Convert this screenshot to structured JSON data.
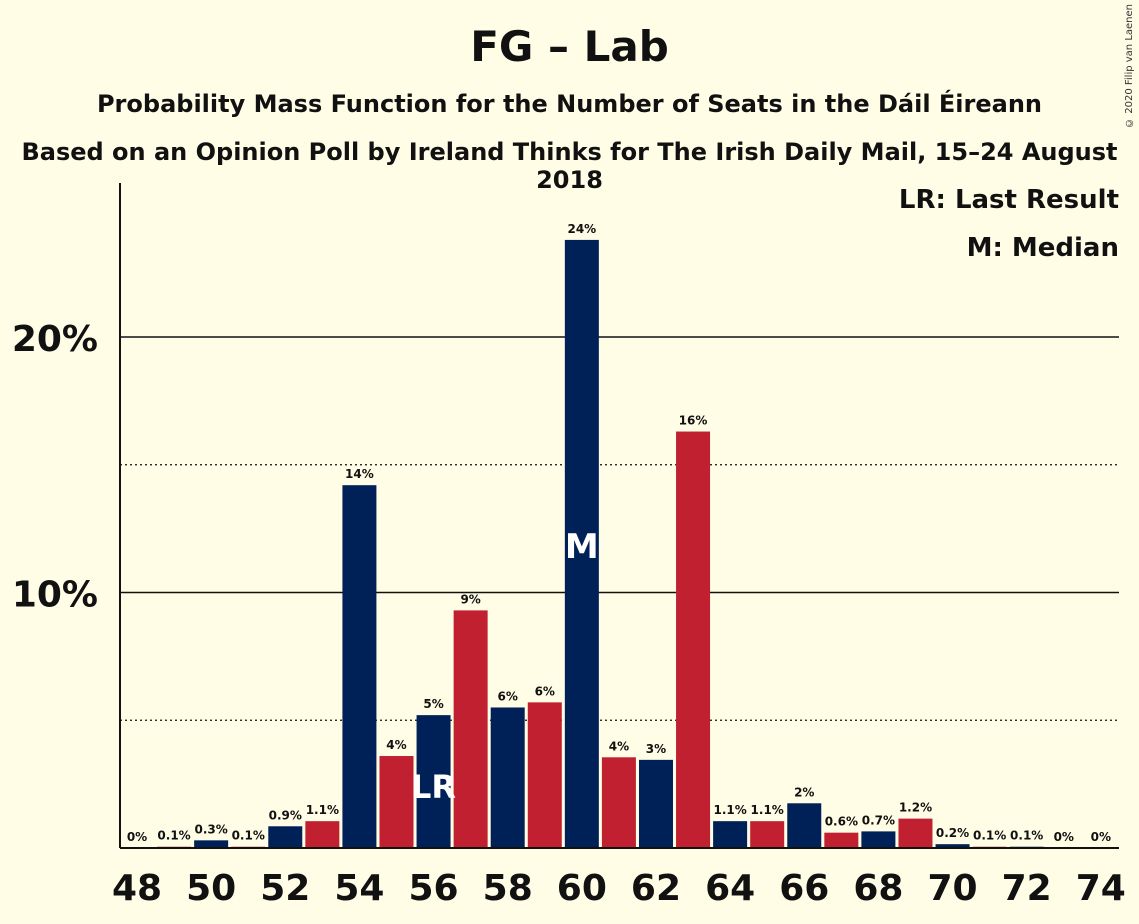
{
  "title": "FG – Lab",
  "subtitle1": "Probability Mass Function for the Number of Seats in the Dáil Éireann",
  "subtitle2": "Based on an Opinion Poll by Ireland Thinks for The Irish Daily Mail, 15–24 August 2018",
  "copyright": "© 2020 Filip van Laenen",
  "legend": {
    "last_result": "LR: Last Result",
    "median": "M: Median"
  },
  "colors": {
    "navy": "#002157",
    "red": "#c0202f",
    "background": "#fffde6"
  },
  "chart_data": {
    "type": "bar",
    "x": [
      48,
      49,
      50,
      51,
      52,
      53,
      54,
      55,
      56,
      57,
      58,
      59,
      60,
      61,
      62,
      63,
      64,
      65,
      66,
      67,
      68,
      69,
      70,
      71,
      72,
      73,
      74
    ],
    "values": [
      0,
      0.05,
      0.3,
      0.05,
      0.85,
      1.05,
      14.2,
      3.6,
      5.2,
      9.3,
      5.5,
      5.7,
      23.8,
      3.55,
      3.45,
      16.3,
      1.05,
      1.05,
      1.75,
      0.6,
      0.65,
      1.15,
      0.15,
      0.05,
      0.05,
      0,
      0
    ],
    "data_labels": [
      "0%",
      "0.1%",
      "0.3%",
      "0.1%",
      "0.9%",
      "1.1%",
      "14%",
      "4%",
      "5%",
      "9%",
      "6%",
      "6%",
      "24%",
      "4%",
      "3%",
      "16%",
      "1.1%",
      "1.1%",
      "2%",
      "0.6%",
      "0.7%",
      "1.2%",
      "0.2%",
      "0.1%",
      "0.1%",
      "0%",
      "0%"
    ],
    "x_ticks": [
      48,
      50,
      52,
      54,
      56,
      58,
      60,
      62,
      64,
      66,
      68,
      70,
      72,
      74
    ],
    "y_ticks": [
      {
        "value": 10,
        "label": "10%"
      },
      {
        "value": 20,
        "label": "20%"
      }
    ],
    "dotted_gridlines": [
      5,
      15
    ],
    "ylim": [
      0,
      26
    ],
    "last_result_seat": 56,
    "last_result_marker": "LR",
    "median_seat": 60,
    "median_marker": "M"
  }
}
